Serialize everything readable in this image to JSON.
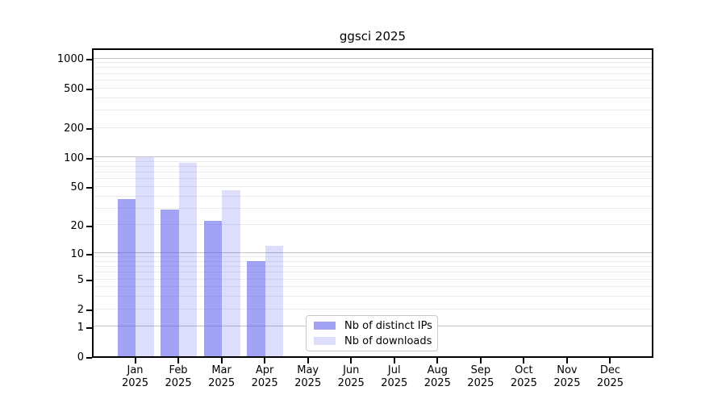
{
  "figure": {
    "title": "ggsci 2025"
  },
  "chart_data": {
    "type": "bar",
    "title": "ggsci 2025",
    "categories": [
      "Jan",
      "Feb",
      "Mar",
      "Apr",
      "May",
      "Jun",
      "Jul",
      "Aug",
      "Sep",
      "Oct",
      "Nov",
      "Dec"
    ],
    "category_year": "2025",
    "series": [
      {
        "name": "Nb of distinct IPs",
        "color": "rgba(85,85,238,0.55)",
        "values": [
          37,
          29,
          22,
          8,
          0,
          0,
          0,
          0,
          0,
          0,
          0,
          0
        ]
      },
      {
        "name": "Nb of downloads",
        "color": "rgba(85,85,238,0.2)",
        "values": [
          100,
          88,
          46,
          12,
          0,
          0,
          0,
          0,
          0,
          0,
          0,
          0
        ]
      }
    ],
    "xlabel": "",
    "ylabel": "",
    "yscale": "log1p",
    "ylim": [
      0,
      1300
    ],
    "yticks": [
      0,
      1,
      2,
      5,
      10,
      20,
      50,
      100,
      200,
      500,
      1000
    ],
    "grid": {
      "major": [
        1,
        10,
        100,
        1000
      ],
      "minor": [
        2,
        3,
        4,
        5,
        6,
        7,
        8,
        9,
        20,
        30,
        40,
        50,
        60,
        70,
        80,
        90,
        200,
        300,
        400,
        500,
        600,
        700,
        800,
        900
      ],
      "major_color": "#c2c2c2",
      "minor_color": "#ececec"
    },
    "legend": {
      "position": "lower center",
      "entries": [
        "Nb of distinct IPs",
        "Nb of downloads"
      ]
    },
    "colors": {
      "bar_base": "#5555ee",
      "axis": "#000000",
      "text": "#000000",
      "legend_border": "#c8c8c8",
      "background": "#ffffff"
    }
  }
}
